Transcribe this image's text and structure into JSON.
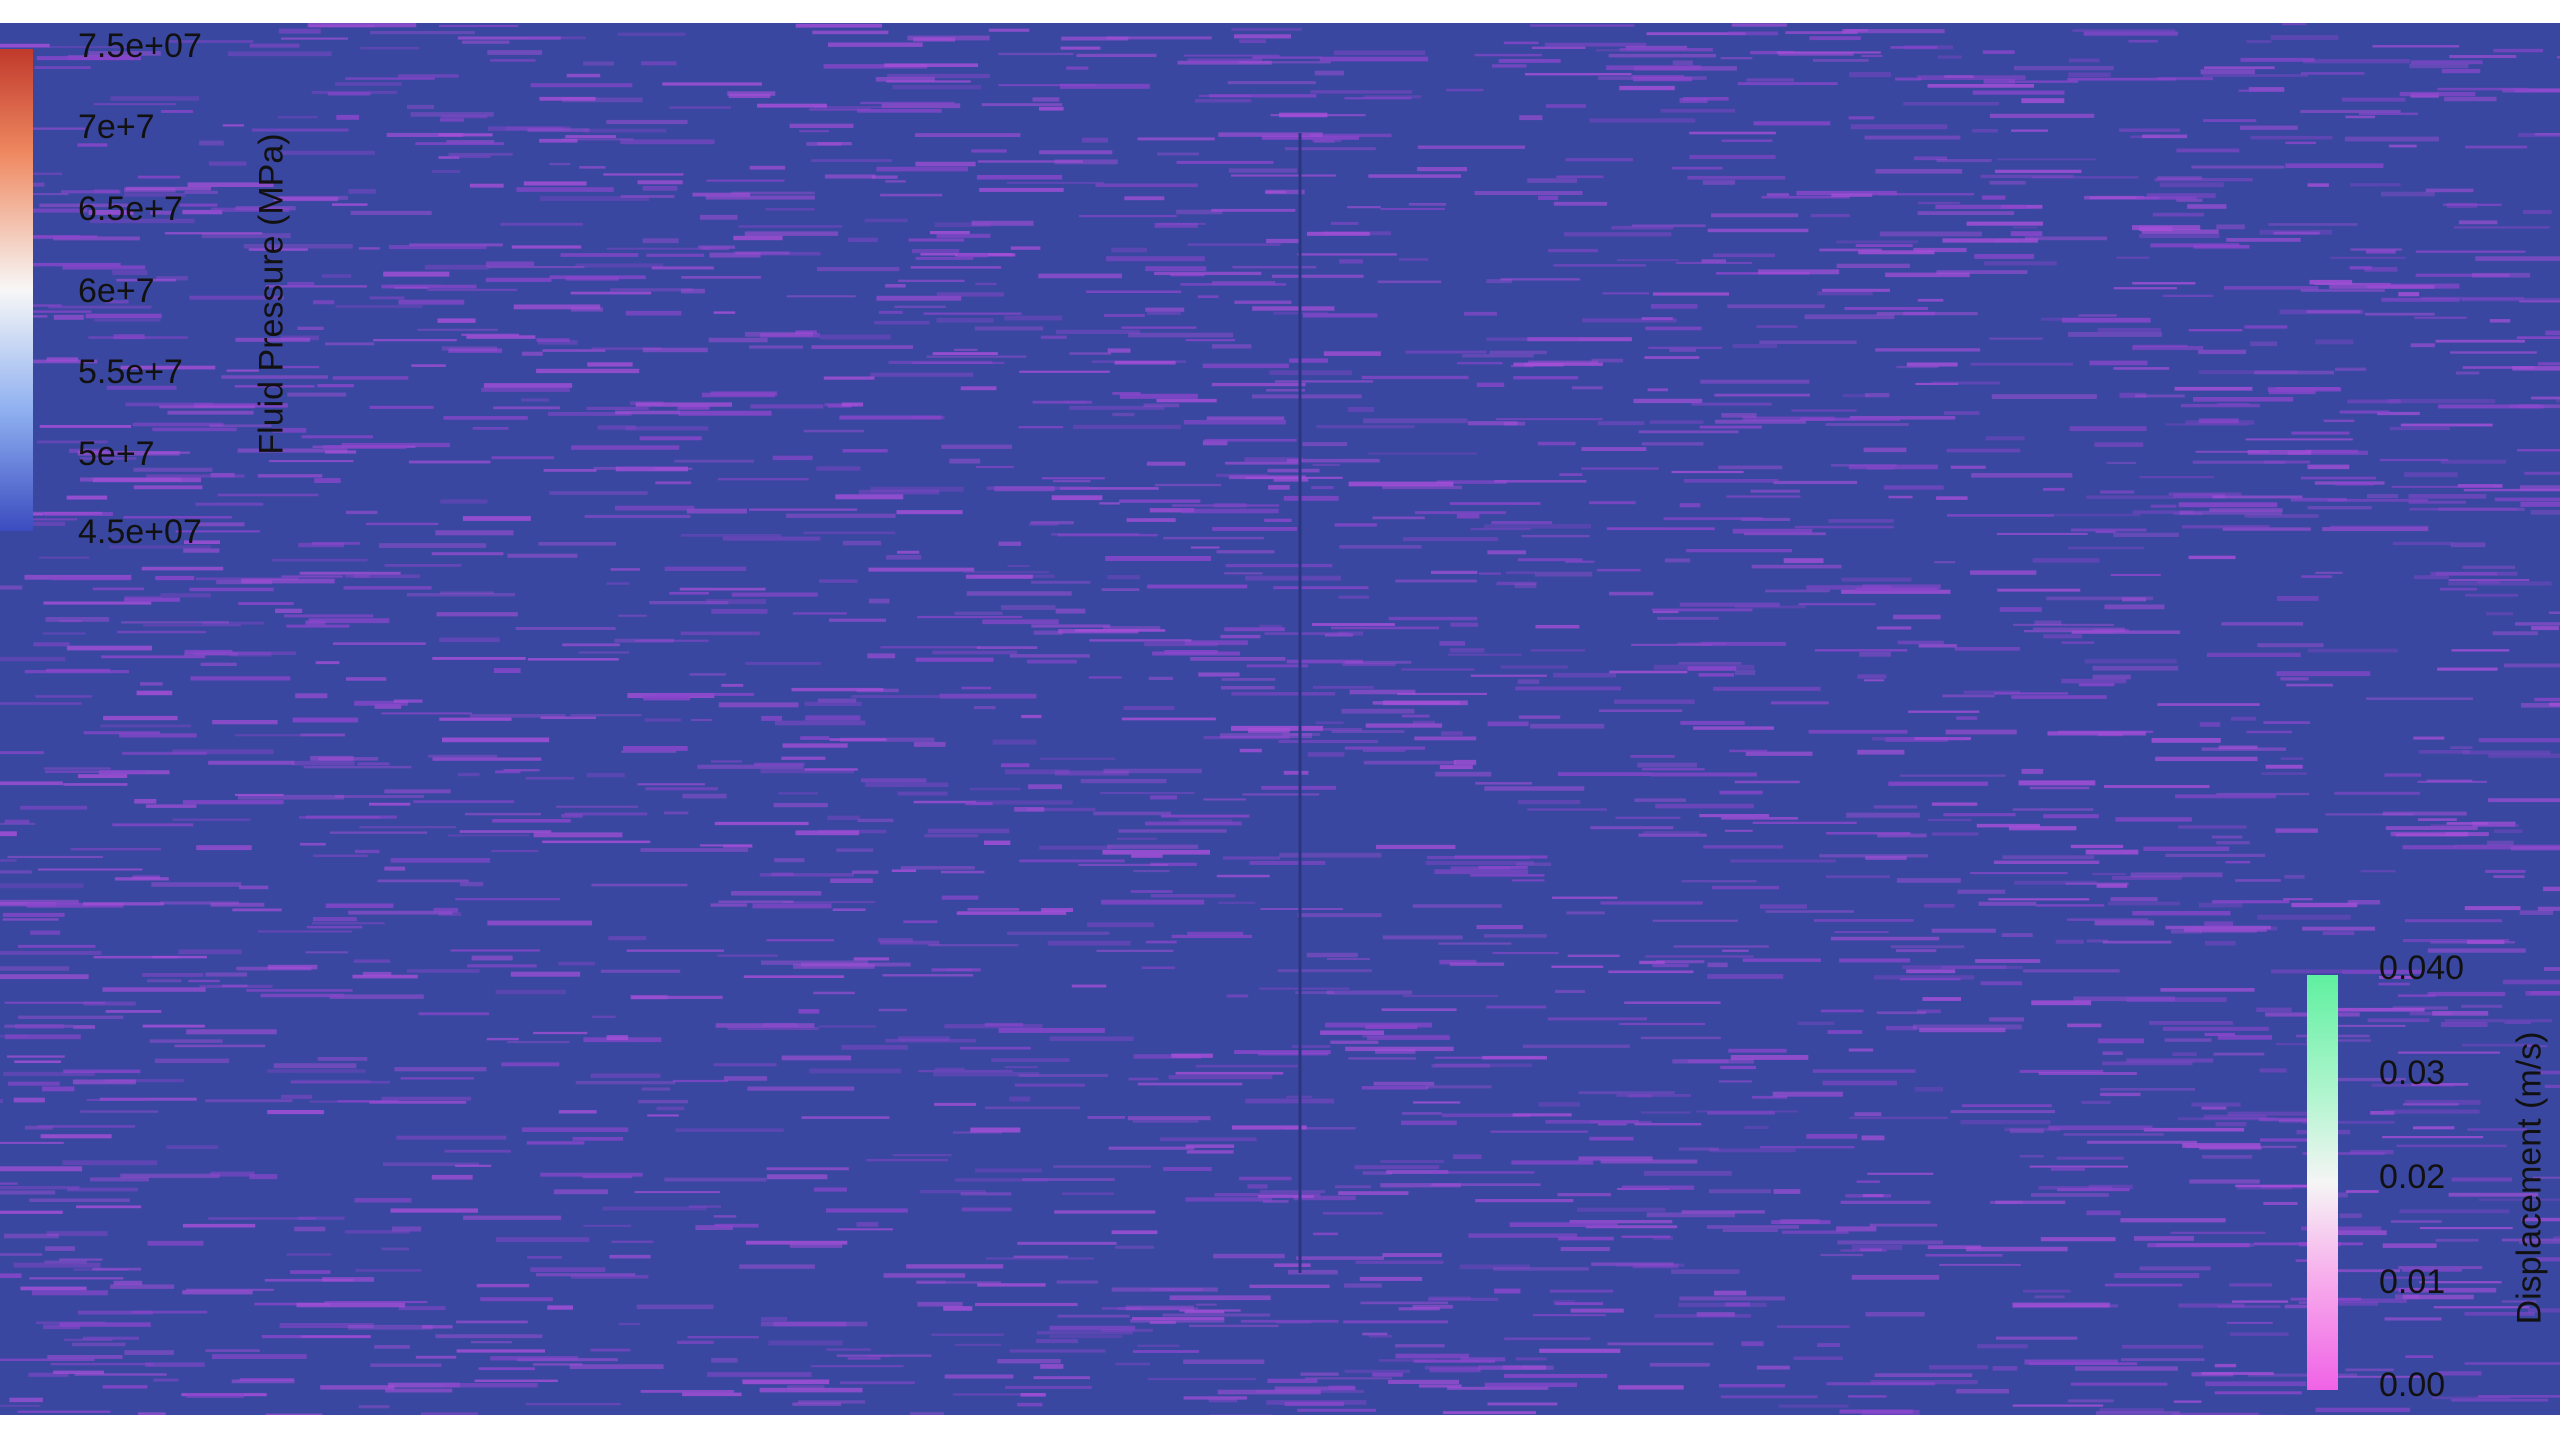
{
  "colorbars": [
    {
      "title": "Fluid Pressure (MPa)",
      "labels": [
        "7.5e+07",
        "7e+7",
        "6.5e+7",
        "6e+7",
        "5.5e+7",
        "5e+7",
        "4.5e+07"
      ]
    },
    {
      "title": "Displacement (m/s)",
      "labels": [
        "0.040",
        "0.03",
        "0.02",
        "0.01",
        "0.00"
      ]
    }
  ]
}
